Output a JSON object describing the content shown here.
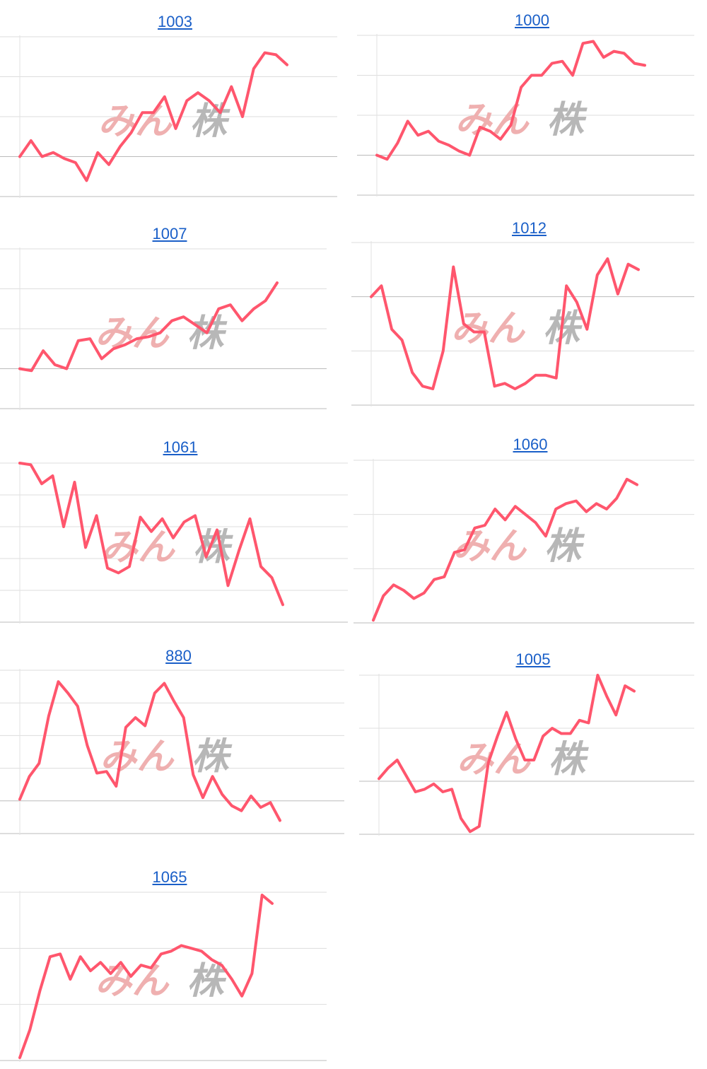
{
  "watermark": {
    "part1": "みん",
    "part2": "株",
    "color1": "#eea8a8",
    "color2": "#b0b0b0"
  },
  "style": {
    "line_color": "#ff566d",
    "grid_color": "#dddddd",
    "axis_color": "#bbbbbb",
    "title_color": "#1a5fc8"
  },
  "chart_data": [
    {
      "type": "line",
      "title": "1003",
      "xlabel": "",
      "ylabel": "",
      "ylim": [
        0,
        4
      ],
      "grid": true,
      "values": [
        1.0,
        1.4,
        1.0,
        1.1,
        0.95,
        0.85,
        0.4,
        1.1,
        0.8,
        1.25,
        1.6,
        2.1,
        2.1,
        2.5,
        1.7,
        2.4,
        2.6,
        2.4,
        2.1,
        2.75,
        2.0,
        3.2,
        3.6,
        3.55,
        3.3
      ]
    },
    {
      "type": "line",
      "title": "1000",
      "xlabel": "",
      "ylabel": "",
      "ylim": [
        0,
        4
      ],
      "grid": true,
      "values": [
        1.0,
        0.9,
        1.3,
        1.85,
        1.5,
        1.6,
        1.35,
        1.25,
        1.1,
        1.0,
        1.7,
        1.6,
        1.4,
        1.75,
        2.7,
        3.0,
        3.0,
        3.3,
        3.35,
        3.0,
        3.8,
        3.85,
        3.45,
        3.6,
        3.55,
        3.3,
        3.25
      ]
    },
    {
      "type": "line",
      "title": "1007",
      "xlabel": "",
      "ylabel": "",
      "ylim": [
        0,
        4
      ],
      "grid": true,
      "values": [
        1.0,
        0.95,
        1.45,
        1.1,
        1.0,
        1.7,
        1.75,
        1.25,
        1.5,
        1.6,
        1.75,
        1.8,
        1.9,
        2.2,
        2.3,
        2.1,
        1.9,
        2.5,
        2.6,
        2.2,
        2.5,
        2.7,
        3.15
      ]
    },
    {
      "type": "line",
      "title": "1012",
      "xlabel": "",
      "ylabel": "",
      "ylim": [
        0,
        3
      ],
      "grid": true,
      "values": [
        2.0,
        2.2,
        1.4,
        1.2,
        0.6,
        0.35,
        0.3,
        1.0,
        2.55,
        1.5,
        1.35,
        1.35,
        0.35,
        0.4,
        0.3,
        0.4,
        0.55,
        0.55,
        0.5,
        2.2,
        1.9,
        1.4,
        2.4,
        2.7,
        2.05,
        2.6,
        2.5
      ]
    },
    {
      "type": "line",
      "title": "1061",
      "xlabel": "",
      "ylabel": "",
      "ylim": [
        0,
        5
      ],
      "grid": true,
      "values": [
        5.0,
        4.95,
        4.35,
        4.6,
        3.0,
        4.4,
        2.35,
        3.35,
        1.7,
        1.55,
        1.75,
        3.3,
        2.85,
        3.25,
        2.65,
        3.15,
        3.35,
        2.05,
        2.9,
        1.15,
        2.25,
        3.25,
        1.75,
        1.4,
        0.55
      ]
    },
    {
      "type": "line",
      "title": "1060",
      "xlabel": "",
      "ylabel": "",
      "ylim": [
        0,
        3
      ],
      "grid": true,
      "values": [
        0.05,
        0.5,
        0.7,
        0.6,
        0.45,
        0.55,
        0.8,
        0.85,
        1.3,
        1.35,
        1.75,
        1.8,
        2.1,
        1.9,
        2.15,
        2.0,
        1.85,
        1.6,
        2.1,
        2.2,
        2.25,
        2.05,
        2.2,
        2.1,
        2.3,
        2.65,
        2.55
      ]
    },
    {
      "type": "line",
      "title": "880",
      "xlabel": "",
      "ylabel": "",
      "ylim": [
        0,
        5
      ],
      "grid": true,
      "values": [
        1.05,
        1.75,
        2.15,
        3.6,
        4.65,
        4.3,
        3.9,
        2.7,
        1.85,
        1.9,
        1.45,
        3.25,
        3.55,
        3.3,
        4.3,
        4.6,
        4.05,
        3.55,
        1.8,
        1.1,
        1.75,
        1.2,
        0.85,
        0.7,
        1.15,
        0.8,
        0.95,
        0.4
      ]
    },
    {
      "type": "line",
      "title": "1005",
      "xlabel": "",
      "ylabel": "",
      "ylim": [
        0,
        3
      ],
      "grid": true,
      "values": [
        1.05,
        1.25,
        1.4,
        1.1,
        0.8,
        0.85,
        0.95,
        0.8,
        0.85,
        0.3,
        0.05,
        0.15,
        1.35,
        1.85,
        2.3,
        1.8,
        1.4,
        1.4,
        1.85,
        2.0,
        1.9,
        1.9,
        2.15,
        2.1,
        3.0,
        2.6,
        2.25,
        2.8,
        2.7
      ]
    },
    {
      "type": "line",
      "title": "1065",
      "xlabel": "",
      "ylabel": "",
      "ylim": [
        0,
        3
      ],
      "grid": true,
      "values": [
        0.05,
        0.55,
        1.25,
        1.85,
        1.9,
        1.45,
        1.85,
        1.6,
        1.75,
        1.55,
        1.75,
        1.5,
        1.7,
        1.65,
        1.9,
        1.95,
        2.05,
        2.0,
        1.95,
        1.8,
        1.7,
        1.45,
        1.15,
        1.55,
        2.95,
        2.8
      ]
    }
  ]
}
